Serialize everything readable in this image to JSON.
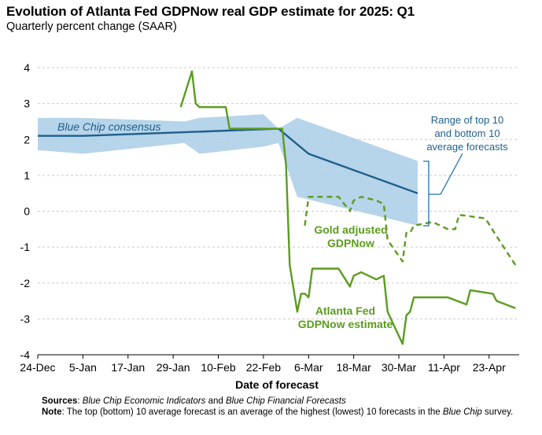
{
  "title": "Evolution of Atlanta Fed GDPNow real GDP estimate for 2025: Q1",
  "subtitle": "Quarterly percent change (SAAR)",
  "chart_data": {
    "type": "line",
    "title": "Evolution of Atlanta Fed GDPNow real GDP estimate for 2025: Q1",
    "subtitle": "Quarterly percent change (SAAR)",
    "xlabel": "Date of forecast",
    "ylabel": "",
    "ylim": [
      -4,
      4
    ],
    "xlim": [
      "2024-12-24",
      "2025-05-01"
    ],
    "grid": "horizontal",
    "x_ticks": [
      "24-Dec",
      "5-Jan",
      "17-Jan",
      "29-Jan",
      "10-Feb",
      "22-Feb",
      "6-Mar",
      "18-Mar",
      "30-Mar",
      "11-Apr",
      "23-Apr"
    ],
    "y_ticks": [
      "4",
      "3",
      "2",
      "1",
      "0",
      "-1",
      "-2",
      "-3",
      "-4"
    ],
    "band": {
      "name": "Range of top 10 and bottom 10 average forecasts",
      "color": "#a9cce6",
      "points": [
        [
          "2024-12-24",
          1.7,
          2.6
        ],
        [
          "2025-01-05",
          1.6,
          2.6
        ],
        [
          "2025-02-01",
          1.9,
          2.5
        ],
        [
          "2025-02-05",
          1.6,
          2.6
        ],
        [
          "2025-02-22",
          1.8,
          2.7
        ],
        [
          "2025-02-26",
          1.9,
          2.3
        ],
        [
          "2025-03-03",
          0.4,
          2.6
        ],
        [
          "2025-04-04",
          -0.4,
          1.4
        ]
      ]
    },
    "series": [
      {
        "name": "Blue Chip consensus",
        "color": "#1f5f8b",
        "style": "solid",
        "points": [
          [
            "2024-12-24",
            2.1
          ],
          [
            "2025-01-05",
            2.1
          ],
          [
            "2025-02-01",
            2.2
          ],
          [
            "2025-02-26",
            2.3
          ],
          [
            "2025-03-06",
            1.6
          ],
          [
            "2025-04-04",
            0.5
          ]
        ]
      },
      {
        "name": "Atlanta Fed GDPNow estimate",
        "color": "#5b9c1f",
        "style": "solid",
        "points": [
          [
            "2025-01-31",
            2.9
          ],
          [
            "2025-02-03",
            3.9
          ],
          [
            "2025-02-04",
            3.0
          ],
          [
            "2025-02-05",
            2.9
          ],
          [
            "2025-02-10",
            2.9
          ],
          [
            "2025-02-12",
            2.9
          ],
          [
            "2025-02-13",
            2.3
          ],
          [
            "2025-02-27",
            2.3
          ],
          [
            "2025-02-28",
            1.3
          ],
          [
            "2025-03-01",
            -1.5
          ],
          [
            "2025-03-03",
            -2.8
          ],
          [
            "2025-03-04",
            -2.3
          ],
          [
            "2025-03-05",
            -2.3
          ],
          [
            "2025-03-06",
            -2.4
          ],
          [
            "2025-03-07",
            -1.6
          ],
          [
            "2025-03-14",
            -1.6
          ],
          [
            "2025-03-17",
            -2.1
          ],
          [
            "2025-03-18",
            -1.8
          ],
          [
            "2025-03-20",
            -1.7
          ],
          [
            "2025-03-24",
            -1.9
          ],
          [
            "2025-03-26",
            -1.8
          ],
          [
            "2025-03-27",
            -2.8
          ],
          [
            "2025-03-31",
            -3.7
          ],
          [
            "2025-04-01",
            -2.9
          ],
          [
            "2025-04-02",
            -2.8
          ],
          [
            "2025-04-03",
            -2.4
          ],
          [
            "2025-04-12",
            -2.4
          ],
          [
            "2025-04-17",
            -2.6
          ],
          [
            "2025-04-18",
            -2.2
          ],
          [
            "2025-04-24",
            -2.3
          ],
          [
            "2025-04-25",
            -2.5
          ],
          [
            "2025-04-30",
            -2.7
          ]
        ]
      },
      {
        "name": "Gold adjusted GDPNow",
        "color": "#5b9c1f",
        "style": "dashed",
        "points": [
          [
            "2025-03-05",
            -0.4
          ],
          [
            "2025-03-06",
            0.4
          ],
          [
            "2025-03-14",
            0.4
          ],
          [
            "2025-03-17",
            0.0
          ],
          [
            "2025-03-18",
            0.3
          ],
          [
            "2025-03-20",
            0.4
          ],
          [
            "2025-03-24",
            0.3
          ],
          [
            "2025-03-26",
            0.2
          ],
          [
            "2025-03-27",
            -0.8
          ],
          [
            "2025-03-31",
            -1.4
          ],
          [
            "2025-04-01",
            -0.6
          ],
          [
            "2025-04-02",
            -0.6
          ],
          [
            "2025-04-03",
            -0.4
          ],
          [
            "2025-04-08",
            -0.3
          ],
          [
            "2025-04-12",
            -0.5
          ],
          [
            "2025-04-14",
            -0.5
          ],
          [
            "2025-04-15",
            -0.1
          ],
          [
            "2025-04-22",
            -0.2
          ],
          [
            "2025-04-25",
            -0.7
          ],
          [
            "2025-04-30",
            -1.5
          ]
        ]
      }
    ],
    "annotations": {
      "blue_chip": "Blue Chip consensus",
      "range_line1": "Range of top 10",
      "range_line2": "and bottom 10",
      "range_line3": "average forecasts",
      "gold_line1": "Gold adjusted",
      "gold_line2": "GDPNow",
      "atl_line1": "Atlanta Fed",
      "atl_line2": "GDPNow estimate"
    }
  },
  "notes": {
    "sources_label": "Sources",
    "sources_part1": "Blue Chip Economic Indicators",
    "sources_and": " and ",
    "sources_part2": "Blue Chip Financial Forecasts",
    "note_label": "Note",
    "note_text1": ": The top (bottom) 10 average forecast is an average of the highest (lowest) 10 forecasts in the ",
    "note_bluechip": "Blue Chip",
    "note_text2": " survey."
  }
}
